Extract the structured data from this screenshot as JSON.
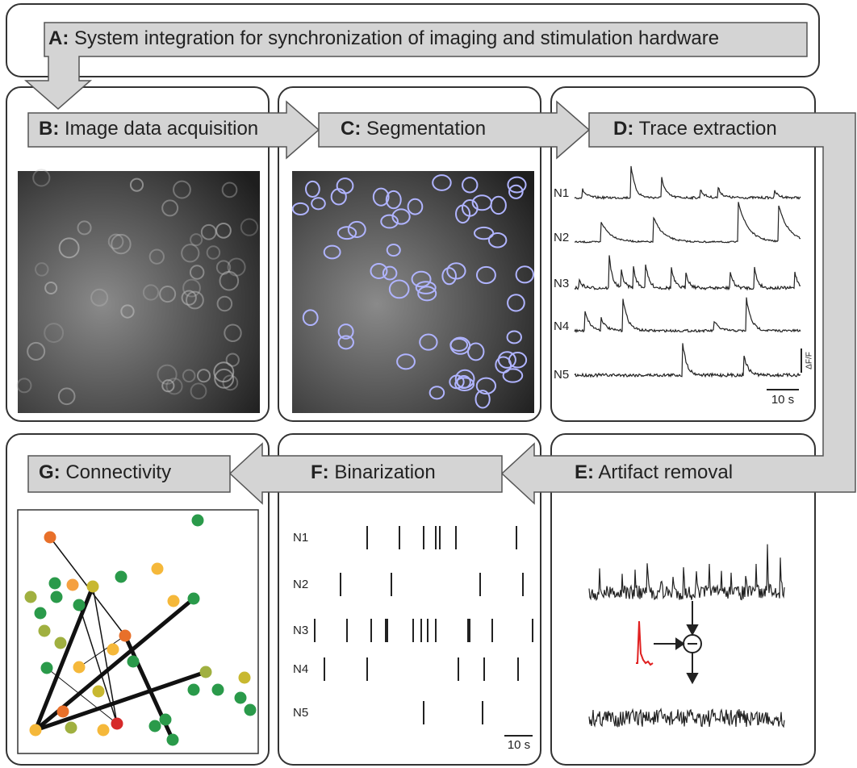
{
  "panels": [
    {
      "letter": "A:",
      "title": "System integration for synchronization of imaging and stimulation hardware"
    },
    {
      "letter": "B:",
      "title": "Image data acquisition"
    },
    {
      "letter": "C:",
      "title": "Segmentation"
    },
    {
      "letter": "D:",
      "title": "Trace extraction"
    },
    {
      "letter": "E:",
      "title": "Artifact removal"
    },
    {
      "letter": "F:",
      "title": "Binarization"
    },
    {
      "letter": "G:",
      "title": "Connectivity"
    }
  ],
  "traces": {
    "labels": [
      "N1",
      "N2",
      "N3",
      "N4",
      "N5"
    ],
    "time_scale": "10 s",
    "amplitude_scale": "ΔF/F"
  },
  "raster": {
    "labels": [
      "N1",
      "N2",
      "N3",
      "N4",
      "N5"
    ],
    "time_scale": "10 s"
  }
}
